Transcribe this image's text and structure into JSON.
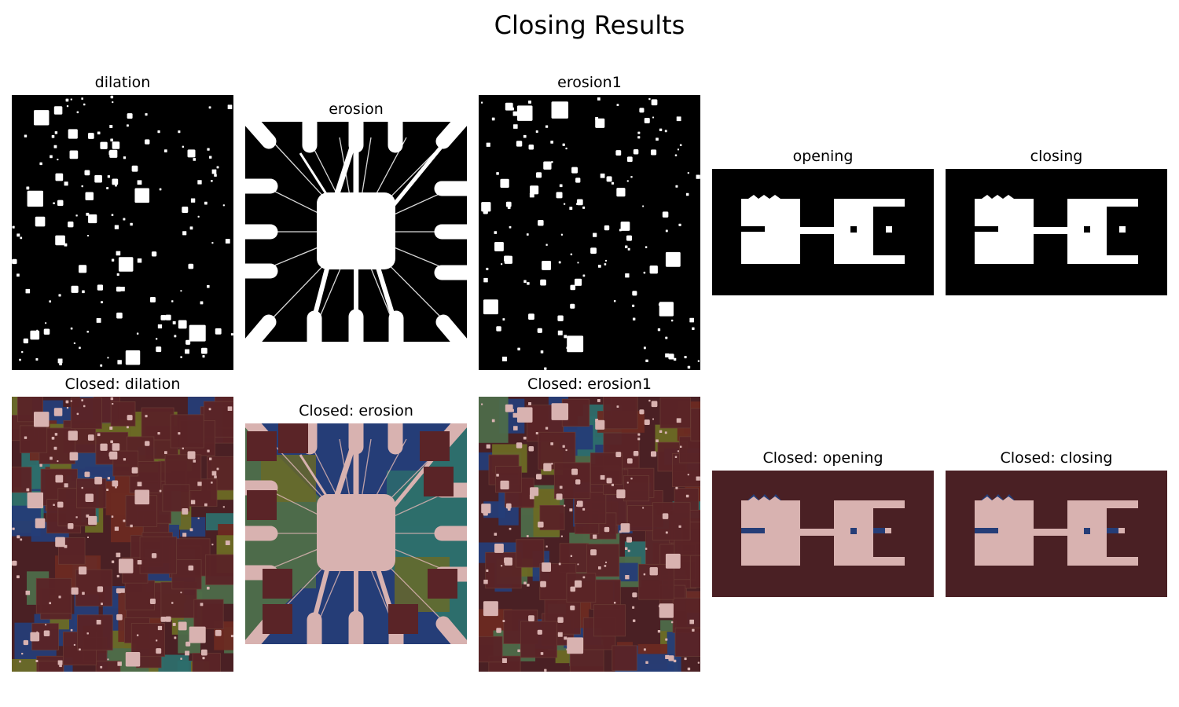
{
  "figure": {
    "title": "Closing Results"
  },
  "panels": [
    {
      "title": "dilation",
      "scene": "stars",
      "style": "binary"
    },
    {
      "title": "erosion",
      "scene": "chip",
      "style": "binary"
    },
    {
      "title": "erosion1",
      "scene": "stars",
      "style": "binary"
    },
    {
      "title": "opening",
      "scene": "blocks",
      "style": "binary"
    },
    {
      "title": "closing",
      "scene": "blocks",
      "style": "binary"
    },
    {
      "title": "Closed: dilation",
      "scene": "stars",
      "style": "color"
    },
    {
      "title": "Closed: erosion",
      "scene": "chip",
      "style": "color"
    },
    {
      "title": "Closed: erosion1",
      "scene": "stars",
      "style": "color"
    },
    {
      "title": "Closed: opening",
      "scene": "blocks",
      "style": "color"
    },
    {
      "title": "Closed: closing",
      "scene": "blocks",
      "style": "color"
    }
  ],
  "colors": {
    "binary_bg": "#000000",
    "binary_fg": "#ffffff",
    "closed_bg": "#4a2024",
    "closed_fg": "#d8b2b0",
    "closed_blue": "#253d77",
    "closed_green": "#4d6b4a",
    "closed_teal": "#2d6e6c",
    "closed_olive": "#6b6a25",
    "closed_red": "#6b2a22",
    "closed_square": "#5a2427"
  }
}
